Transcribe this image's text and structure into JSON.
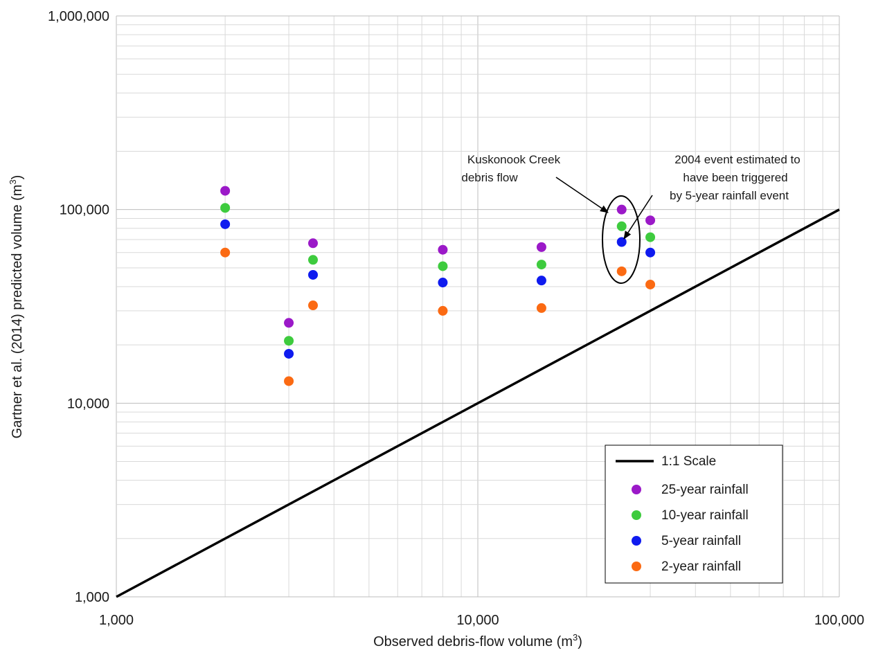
{
  "chart_data": {
    "type": "scatter",
    "title": "",
    "x_scale": "log",
    "y_scale": "log",
    "xlim": [
      1000,
      100000
    ],
    "ylim": [
      1000,
      1000000
    ],
    "xlabel_main": "Observed debris-flow volume (m",
    "xlabel_sup": "3",
    "xlabel_end": ")",
    "ylabel_main": "Gartner et al. (2014) predicted volume (m",
    "ylabel_sup": "3",
    "ylabel_end": ")",
    "x_ticks": [
      {
        "value": 1000,
        "label": "1,000"
      },
      {
        "value": 10000,
        "label": "10,000"
      },
      {
        "value": 100000,
        "label": "100,000"
      }
    ],
    "y_ticks": [
      {
        "value": 1000,
        "label": "1,000"
      },
      {
        "value": 10000,
        "label": "10,000"
      },
      {
        "value": 100000,
        "label": "100,000"
      },
      {
        "value": 1000000,
        "label": "1,000,000"
      }
    ],
    "grid": true,
    "reference_line": {
      "name": "1:1 Scale",
      "x": [
        1000,
        100000
      ],
      "y": [
        1000,
        100000
      ],
      "color": "#000000"
    },
    "series": [
      {
        "name": "25-year rainfall",
        "color": "#9b19c8",
        "x": [
          2000,
          3000,
          3500,
          8000,
          15000,
          25000,
          30000
        ],
        "y": [
          125000,
          26000,
          67000,
          62000,
          64000,
          100000,
          88000
        ]
      },
      {
        "name": "10-year rainfall",
        "color": "#3ecb3e",
        "x": [
          2000,
          3000,
          3500,
          8000,
          15000,
          25000,
          30000
        ],
        "y": [
          102000,
          21000,
          55000,
          51000,
          52000,
          82000,
          72000
        ]
      },
      {
        "name": "5-year rainfall",
        "color": "#0f1bef",
        "x": [
          2000,
          3000,
          3500,
          8000,
          15000,
          25000,
          30000
        ],
        "y": [
          84000,
          18000,
          46000,
          42000,
          43000,
          68000,
          60000
        ]
      },
      {
        "name": "2-year rainfall",
        "color": "#fb6a13",
        "x": [
          2000,
          3000,
          3500,
          8000,
          15000,
          25000,
          30000
        ],
        "y": [
          60000,
          13000,
          32000,
          30000,
          31000,
          48000,
          41000
        ]
      }
    ],
    "legend_position": "bottom-right",
    "annotations": [
      {
        "lines": [
          "Kuskonook Creek",
          "debris flow"
        ]
      },
      {
        "lines": [
          "2004 event estimated to",
          "have been triggered",
          "by 5-year rainfall event"
        ]
      }
    ]
  }
}
